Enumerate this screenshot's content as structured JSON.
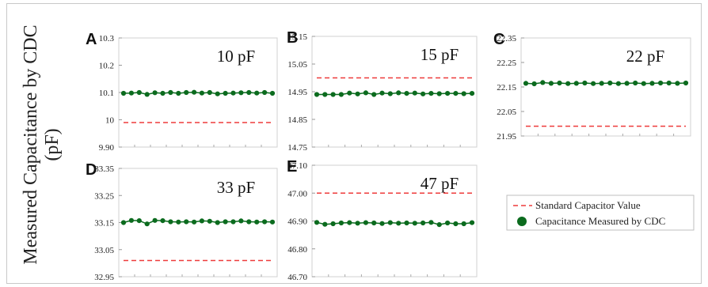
{
  "y_axis_label": {
    "line1": "Measured Capacitance by CDC",
    "line2": "(pF)"
  },
  "legend": {
    "position": "bottom-right",
    "items": [
      {
        "label": "Standard Capacitor Value",
        "kind": "dashed-line",
        "color": "#ee3b3b"
      },
      {
        "label": "Capacitance Measured by CDC",
        "kind": "marker",
        "color": "#0b6b1e"
      }
    ]
  },
  "chart_data": [
    {
      "type": "scatter",
      "panel": "A",
      "title": "10 pF",
      "yticks": [
        "10.3",
        "10.2",
        "10.1",
        "10",
        "9.90"
      ],
      "ylim": [
        9.9,
        10.3
      ],
      "standard_value": 9.99,
      "series": [
        {
          "name": "Capacitance Measured by CDC",
          "values": [
            10.097,
            10.098,
            10.1,
            10.093,
            10.099,
            10.097,
            10.1,
            10.097,
            10.1,
            10.101,
            10.098,
            10.1,
            10.095,
            10.097,
            10.098,
            10.099,
            10.1,
            10.098,
            10.1,
            10.097
          ]
        }
      ]
    },
    {
      "type": "scatter",
      "panel": "B",
      "title": "15 pF",
      "yticks": [
        "15.15",
        "15.05",
        "14.95",
        "14.85",
        "14.75"
      ],
      "ylim": [
        14.75,
        15.15
      ],
      "standard_value": 15.0,
      "series": [
        {
          "name": "Capacitance Measured by CDC",
          "values": [
            14.94,
            14.94,
            14.94,
            14.94,
            14.945,
            14.942,
            14.946,
            14.94,
            14.945,
            14.943,
            14.946,
            14.944,
            14.945,
            14.942,
            14.944,
            14.943,
            14.944,
            14.944,
            14.943,
            14.944
          ]
        }
      ]
    },
    {
      "type": "scatter",
      "panel": "C",
      "title": "22 pF",
      "yticks": [
        "22.35",
        "22.25",
        "22.15",
        "22.05",
        "21.95"
      ],
      "ylim": [
        21.95,
        22.35
      ],
      "standard_value": 21.99,
      "series": [
        {
          "name": "Capacitance Measured by CDC",
          "values": [
            22.165,
            22.163,
            22.168,
            22.165,
            22.166,
            22.164,
            22.165,
            22.166,
            22.164,
            22.165,
            22.166,
            22.164,
            22.165,
            22.166,
            22.164,
            22.165,
            22.166,
            22.166,
            22.165,
            22.166
          ]
        }
      ]
    },
    {
      "type": "scatter",
      "panel": "D",
      "title": "33 pF",
      "yticks": [
        "33.35",
        "33.25",
        "33.15",
        "33.05",
        "32.95"
      ],
      "ylim": [
        32.95,
        33.35
      ],
      "standard_value": 33.01,
      "series": [
        {
          "name": "Capacitance Measured by CDC",
          "values": [
            33.15,
            33.158,
            33.157,
            33.145,
            33.158,
            33.157,
            33.153,
            33.152,
            33.153,
            33.152,
            33.156,
            33.155,
            33.15,
            33.153,
            33.153,
            33.156,
            33.153,
            33.152,
            33.153,
            33.152
          ]
        }
      ]
    },
    {
      "type": "scatter",
      "panel": "E",
      "title": "47 pF",
      "yticks": [
        "47.10",
        "47.00",
        "46.90",
        "46.80",
        "46.70"
      ],
      "ylim": [
        46.7,
        47.1
      ],
      "standard_value": 47.0,
      "series": [
        {
          "name": "Capacitance Measured by CDC",
          "values": [
            46.895,
            46.888,
            46.89,
            46.893,
            46.894,
            46.892,
            46.894,
            46.893,
            46.891,
            46.894,
            46.892,
            46.893,
            46.892,
            46.893,
            46.895,
            46.887,
            46.893,
            46.89,
            46.89,
            46.894
          ]
        }
      ]
    }
  ]
}
